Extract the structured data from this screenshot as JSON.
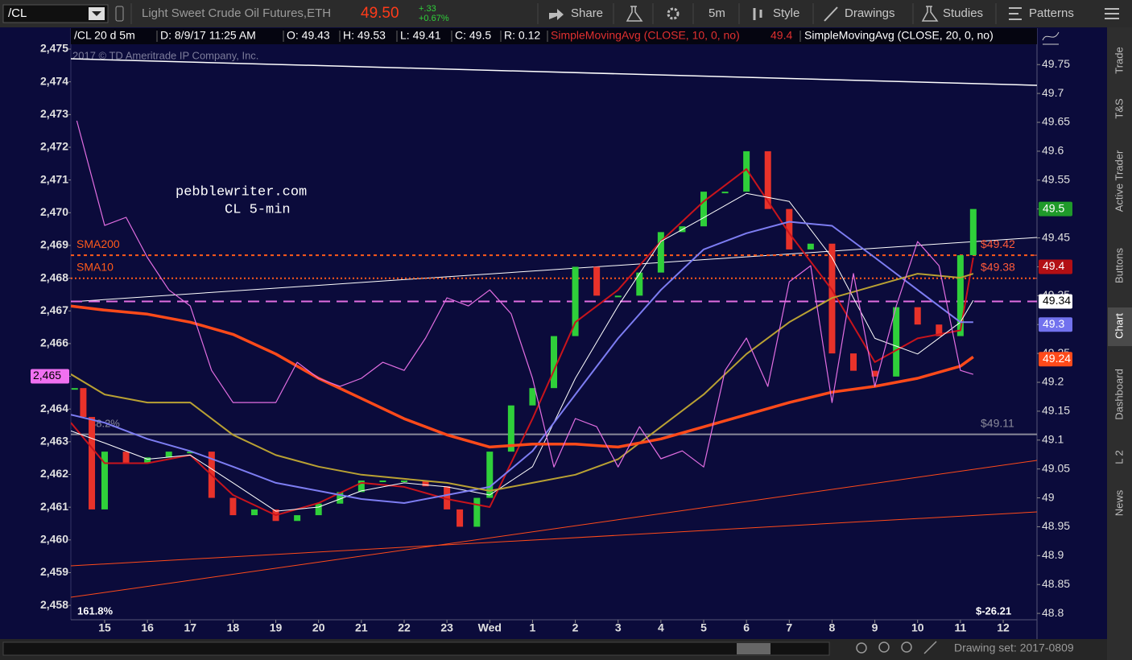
{
  "toolbar": {
    "symbol": "/CL",
    "description": "Light Sweet Crude Oil Futures,ETH",
    "last": "49.50",
    "change": "+.33",
    "change_pct": "+0.67%",
    "share": "Share",
    "aggregation": "5m",
    "style": "Style",
    "drawings": "Drawings",
    "studies": "Studies",
    "patterns": "Patterns"
  },
  "info_bar": {
    "symbol": "/CL 20 d 5m",
    "date": "D: 8/9/17 11:25 AM",
    "open": "O: 49.43",
    "high": "H: 49.53",
    "low": "L: 49.41",
    "close": "C: 49.5",
    "range": "R: 0.12",
    "sma10_value": 49.4
  },
  "side_tabs": [
    "Trade",
    "T&S",
    "Active Trader",
    "Buttons",
    "Chart",
    "Dashboard",
    "L 2",
    "News"
  ],
  "footer": {
    "drawing_set": "Drawing set: 2017-0809"
  },
  "chart_data": {
    "type": "line",
    "annotations": [
      "pebblewriter.com",
      "CL 5-min",
      "2017 © TD Ameritrade IP Company, Inc.",
      "38.2%",
      "161.8%",
      "$-26.21"
    ],
    "xlim": [
      -0.79,
      21.79
    ],
    "xticks": [
      {
        "value": 0,
        "label": "15"
      },
      {
        "value": 1,
        "label": "16"
      },
      {
        "value": 2,
        "label": "17"
      },
      {
        "value": 3,
        "label": "18"
      },
      {
        "value": 4,
        "label": "19"
      },
      {
        "value": 5,
        "label": "20"
      },
      {
        "value": 6,
        "label": "21"
      },
      {
        "value": 7,
        "label": "22"
      },
      {
        "value": 8,
        "label": "23"
      },
      {
        "value": 9,
        "label": "Wed"
      },
      {
        "value": 10,
        "label": "1"
      },
      {
        "value": 11,
        "label": "2"
      },
      {
        "value": 12,
        "label": "3"
      },
      {
        "value": 13,
        "label": "4"
      },
      {
        "value": 14,
        "label": "5"
      },
      {
        "value": 15,
        "label": "6"
      },
      {
        "value": 16,
        "label": "7"
      },
      {
        "value": 17,
        "label": "8"
      },
      {
        "value": 18,
        "label": "9"
      },
      {
        "value": 19,
        "label": "10"
      },
      {
        "value": 20,
        "label": "11"
      },
      {
        "value": 21,
        "label": "12"
      }
    ],
    "ylim": [
      48.789,
      49.813
    ],
    "yticks": [
      48.8,
      48.85,
      48.9,
      48.95,
      49,
      49.05,
      49.1,
      49.15,
      49.2,
      49.25,
      49.3,
      49.35,
      49.4,
      49.45,
      49.5,
      49.55,
      49.6,
      49.65,
      49.7,
      49.75
    ],
    "y2lim": [
      2457.56,
      2475.64
    ],
    "y2ticks": [
      {
        "value": 2458,
        "label": "2,458"
      },
      {
        "value": 2459,
        "label": "2,459"
      },
      {
        "value": 2460,
        "label": "2,460"
      },
      {
        "value": 2461,
        "label": "2,461"
      },
      {
        "value": 2462,
        "label": "2,462"
      },
      {
        "value": 2463,
        "label": "2,463"
      },
      {
        "value": 2464,
        "label": "2,464"
      },
      {
        "value": 2465,
        "label": "2,465"
      },
      {
        "value": 2466,
        "label": "2,466"
      },
      {
        "value": 2467,
        "label": "2,467"
      },
      {
        "value": 2468,
        "label": "2,468"
      },
      {
        "value": 2469,
        "label": "2,469"
      },
      {
        "value": 2470,
        "label": "2,470"
      },
      {
        "value": 2471,
        "label": "2,471"
      },
      {
        "value": 2472,
        "label": "2,472"
      },
      {
        "value": 2473,
        "label": "2,473"
      },
      {
        "value": 2474,
        "label": "2,474"
      },
      {
        "value": 2475,
        "label": "2,475"
      }
    ],
    "grid": false,
    "series": [
      {
        "style": "candles",
        "up_color": "#2fcf3a",
        "down_color": "#e8322a",
        "x": [
          -0.7,
          -0.5,
          -0.3,
          0,
          0.5,
          1,
          1.5,
          2,
          2.5,
          3,
          3.5,
          4,
          4.5,
          5,
          5.5,
          6,
          6.5,
          7,
          7.5,
          8,
          8.3,
          8.7,
          9,
          9.5,
          10,
          10.5,
          11,
          11.5,
          12,
          12.5,
          13,
          13.5,
          14,
          14.5,
          15,
          15.5,
          16,
          16.5,
          17,
          17.5,
          18,
          18.5,
          19,
          19.5,
          20,
          20.3
        ],
        "values": [
          49.19,
          49.14,
          48.98,
          49.08,
          49.06,
          49.07,
          49.08,
          49.08,
          49.0,
          48.97,
          48.98,
          48.96,
          48.97,
          48.99,
          49.01,
          49.03,
          49.03,
          49.03,
          49.02,
          48.98,
          48.95,
          49.0,
          49.08,
          49.16,
          49.19,
          49.28,
          49.4,
          49.35,
          49.35,
          49.39,
          49.46,
          49.47,
          49.53,
          49.53,
          49.6,
          49.5,
          49.43,
          49.44,
          49.25,
          49.22,
          49.21,
          49.33,
          49.3,
          49.28,
          49.42,
          49.5
        ]
      },
      {
        "name": "SimpleMovingAvg (CLOSE, 10, 0, no)",
        "style": "line",
        "color": "#c8141c",
        "width": 2,
        "x": [
          -0.79,
          0,
          1,
          2,
          3,
          4,
          5,
          6,
          7,
          8,
          9,
          10,
          11,
          12,
          13,
          14,
          15,
          16,
          17,
          18,
          19,
          20,
          20.3
        ],
        "values": [
          49.13,
          49.06,
          49.06,
          49.074,
          49.005,
          48.97,
          48.991,
          49.026,
          49.019,
          48.998,
          48.984,
          49.137,
          49.304,
          49.36,
          49.444,
          49.513,
          49.569,
          49.458,
          49.36,
          49.235,
          49.276,
          49.29,
          49.416
        ]
      },
      {
        "name": "SimpleMovingAvg (CLOSE, 20, 0, no)",
        "style": "line",
        "color": "#ffffff",
        "width": 1,
        "x": [
          -0.79,
          0,
          1,
          2,
          3,
          4,
          5,
          6,
          7,
          8,
          9,
          10,
          11,
          12,
          13,
          14,
          15,
          16,
          17,
          18,
          19,
          20,
          20.3
        ],
        "values": [
          49.116,
          49.095,
          49.067,
          49.074,
          49.026,
          48.977,
          48.984,
          49.012,
          49.026,
          49.019,
          49.005,
          49.054,
          49.207,
          49.332,
          49.444,
          49.485,
          49.527,
          49.513,
          49.416,
          49.276,
          49.249,
          49.304,
          49.342
        ]
      },
      {
        "style": "line",
        "color": "#7d7df2",
        "width": 2,
        "x": [
          -0.79,
          0,
          1,
          2,
          3,
          4,
          5,
          6,
          7,
          8,
          9,
          10,
          11,
          12,
          13,
          14,
          15,
          16,
          17,
          18,
          19,
          20,
          20.3
        ],
        "values": [
          49.144,
          49.13,
          49.102,
          49.081,
          49.054,
          49.026,
          49.012,
          48.998,
          48.991,
          49.005,
          49.019,
          49.081,
          49.179,
          49.276,
          49.36,
          49.43,
          49.458,
          49.478,
          49.471,
          49.416,
          49.36,
          49.304,
          49.304
        ]
      },
      {
        "style": "line",
        "color": "#b9a133",
        "width": 2,
        "x": [
          -0.79,
          0,
          1,
          2,
          3,
          4,
          5,
          6,
          7,
          8,
          9,
          10,
          11,
          12,
          13,
          14,
          15,
          16,
          17,
          18,
          19,
          20,
          20.3
        ],
        "values": [
          49.214,
          49.179,
          49.165,
          49.165,
          49.109,
          49.074,
          49.054,
          49.04,
          49.033,
          49.026,
          49.012,
          49.026,
          49.04,
          49.067,
          49.123,
          49.179,
          49.249,
          49.304,
          49.346,
          49.367,
          49.388,
          49.381,
          49.388
        ]
      },
      {
        "style": "line",
        "color": "#ff4a1a",
        "width": 3.5,
        "x": [
          -0.79,
          0,
          1,
          2,
          3,
          4,
          5,
          6,
          7,
          8,
          9,
          10,
          11,
          12,
          13,
          14,
          15,
          16,
          17,
          18,
          19,
          20,
          20.3
        ],
        "values": [
          49.332,
          49.325,
          49.318,
          49.304,
          49.283,
          49.249,
          49.207,
          49.172,
          49.137,
          49.109,
          49.088,
          49.093,
          49.093,
          49.088,
          49.102,
          49.123,
          49.144,
          49.165,
          49.183,
          49.193,
          49.207,
          49.228,
          49.244
        ]
      },
      {
        "style": "line",
        "color": "#e26ee2",
        "width": 1.2,
        "axis": "y2",
        "x": [
          -0.65,
          0,
          0.5,
          1,
          1.5,
          2,
          2.5,
          3,
          3.5,
          4,
          4.5,
          5,
          5.5,
          6,
          6.5,
          7,
          7.5,
          8,
          8.5,
          9,
          9.5,
          10,
          10.5,
          11,
          11.5,
          12,
          12.5,
          13,
          13.5,
          14,
          14.5,
          15,
          15.5,
          16,
          16.5,
          17,
          17.5,
          18,
          18.5,
          19,
          19.5,
          20,
          20.3
        ],
        "values": [
          2472.81,
          2469.61,
          2469.86,
          2468.63,
          2467.64,
          2467.15,
          2465.18,
          2464.2,
          2464.2,
          2464.2,
          2465.43,
          2464.94,
          2464.69,
          2464.94,
          2465.43,
          2465.18,
          2466.17,
          2467.4,
          2467.15,
          2467.64,
          2466.91,
          2464.94,
          2462.23,
          2463.71,
          2463.46,
          2462.23,
          2463.46,
          2462.48,
          2462.72,
          2462.23,
          2465.18,
          2466.17,
          2464.69,
          2467.89,
          2468.38,
          2464.2,
          2468.14,
          2464.69,
          2467.15,
          2469.12,
          2468.38,
          2465.18,
          2465.06
        ]
      }
    ],
    "levels": [
      {
        "value": 49.42,
        "color": "#ff5a1a",
        "dash": "4,4",
        "label": "SMA200"
      },
      {
        "value": 49.38,
        "color": "#ff5a1a",
        "dash": "2,3",
        "label": "SMA10"
      },
      {
        "value": 49.34,
        "color": "#e26ee2",
        "dash": "14,8"
      },
      {
        "value": 49.11,
        "color": "#8a8a9a",
        "dash": "none"
      }
    ],
    "price_labels": [
      {
        "value": 49.5,
        "bg": "#1f9a2a",
        "fg": "#ffffff"
      },
      {
        "value": 49.42,
        "label": "$49.42",
        "fg": "#ff5a3a"
      },
      {
        "value": 49.4,
        "bg": "#b30f14",
        "fg": "#ffffff"
      },
      {
        "value": 49.38,
        "label": "$49.38",
        "fg": "#ff5a3a"
      },
      {
        "value": 49.34,
        "bg": "#ffffff",
        "fg": "#000000"
      },
      {
        "value": 49.3,
        "bg": "#7272ee",
        "fg": "#ffffff"
      },
      {
        "value": 49.24,
        "bg": "#ff4a1a",
        "fg": "#ffffff"
      },
      {
        "value": 49.11,
        "label": "$49.11",
        "fg": "#8a8a9a"
      }
    ],
    "y2_marker": {
      "value": 2465,
      "label": "2,465",
      "bg": "#f070f0",
      "fg": "#000000"
    }
  }
}
